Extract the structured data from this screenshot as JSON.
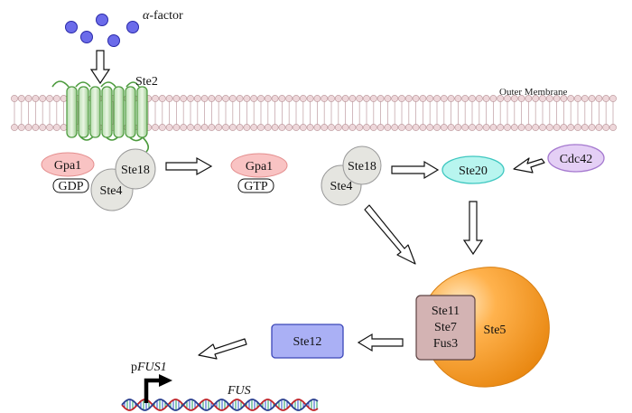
{
  "ligand": {
    "label_prefix": "α",
    "label_rest": "-factor"
  },
  "membrane": {
    "label": "Outer Membrane"
  },
  "receptor": {
    "label": "Ste2"
  },
  "g_protein": {
    "gpa1_gdp": "Gpa1",
    "gdp": "GDP",
    "ste18_a": "Ste18",
    "ste4_a": "Ste4",
    "gpa1_gtp": "Gpa1",
    "gtp": "GTP",
    "ste18_b": "Ste18",
    "ste4_b": "Ste4"
  },
  "kinases": {
    "ste20": "Ste20",
    "cdc42": "Cdc42"
  },
  "scaffold": {
    "label": "Ste5",
    "cascade": [
      "Ste11",
      "Ste7",
      "Fus3"
    ]
  },
  "transcription": {
    "factor": "Ste12",
    "promoter_prefix": "p",
    "promoter_gene": "FUS1",
    "gene": "FUS"
  }
}
